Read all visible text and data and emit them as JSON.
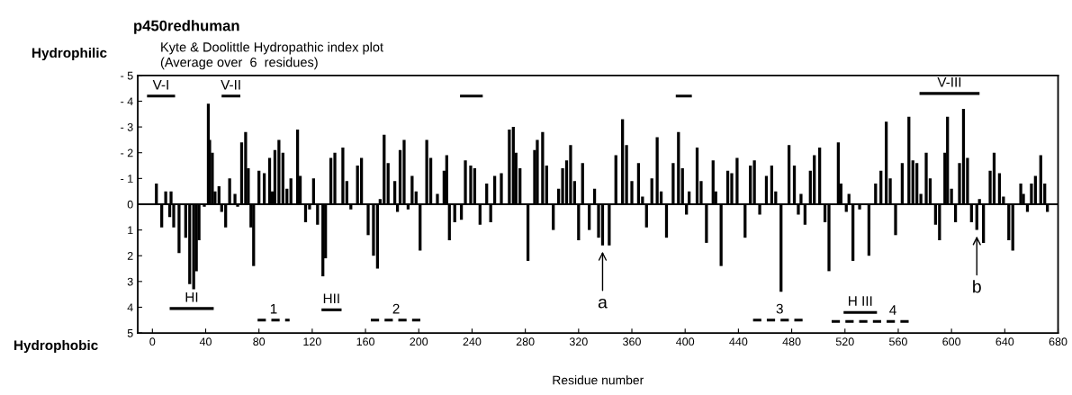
{
  "chart_data": {
    "type": "bar",
    "title": "p450redhuman",
    "subtitle": "Kyte & Doolittle Hydropathic index plot\n(Average over  6  residues)",
    "xlabel": "Residue number",
    "annotations": [
      "Hydrophilic",
      "Hydrophobic",
      {
        "text": "a",
        "x": 338,
        "y": 1.6
      },
      {
        "text": "b",
        "x": 619,
        "y": 1.0
      }
    ],
    "xlim": [
      -11,
      680
    ],
    "xticks": [
      0,
      40,
      80,
      120,
      160,
      200,
      240,
      280,
      320,
      360,
      400,
      440,
      480,
      520,
      560,
      600,
      640,
      680
    ],
    "ylim": [
      5,
      -5
    ],
    "yticks": [
      {
        "value": -5,
        "label": "- 5"
      },
      {
        "value": -4,
        "label": "- 4"
      },
      {
        "value": -3,
        "label": "- 3"
      },
      {
        "value": -2,
        "label": "- 2"
      },
      {
        "value": -1,
        "label": "- 1"
      },
      0,
      1,
      2,
      3,
      4,
      5
    ],
    "series": [
      {
        "color": "#000000",
        "x": [
          3,
          7,
          10,
          13,
          14,
          16,
          20,
          25,
          28,
          31,
          33,
          35,
          39,
          42,
          43,
          45,
          47,
          50,
          52,
          55,
          58,
          62,
          64,
          67,
          70,
          72,
          74,
          76,
          80,
          84,
          88,
          90,
          92,
          95,
          98,
          101,
          104,
          109,
          111,
          115,
          118,
          121,
          124,
          128,
          130,
          134,
          137,
          143,
          146,
          149,
          154,
          157,
          162,
          166,
          169,
          171,
          174,
          177,
          182,
          184,
          186,
          189,
          192,
          195,
          198,
          201,
          206,
          209,
          214,
          219,
          221,
          223,
          227,
          232,
          235,
          239,
          242,
          246,
          251,
          254,
          257,
          262,
          268,
          271,
          273,
          276,
          282,
          287,
          289,
          293,
          296,
          301,
          305,
          308,
          311,
          314,
          317,
          320,
          323,
          328,
          332,
          335,
          338,
          343,
          348,
          353,
          356,
          360,
          365,
          368,
          371,
          375,
          379,
          382,
          386,
          391,
          395,
          398,
          401,
          403,
          409,
          412,
          416,
          421,
          423,
          427,
          432,
          435,
          439,
          445,
          449,
          452,
          456,
          461,
          465,
          468,
          472,
          478,
          482,
          485,
          487,
          490,
          494,
          497,
          501,
          505,
          508,
          515,
          517,
          521,
          523,
          526,
          531,
          538,
          543,
          547,
          551,
          554,
          558,
          563,
          568,
          571,
          574,
          577,
          581,
          584,
          588,
          591,
          595,
          597,
          600,
          603,
          606,
          609,
          612,
          615,
          619,
          621,
          624,
          629,
          632,
          636,
          639,
          643,
          646,
          652,
          654,
          657,
          660,
          663,
          667,
          670,
          672
        ],
        "values": [
          -0.8,
          0.9,
          -0.5,
          0.5,
          -0.5,
          0.9,
          1.9,
          1.3,
          3.1,
          3.3,
          2.6,
          1.4,
          0.1,
          -3.9,
          -2.5,
          -2.0,
          -0.5,
          -0.7,
          0.3,
          0.9,
          -1.0,
          -0.4,
          0.1,
          -2.4,
          -2.8,
          -1.4,
          0.9,
          2.4,
          -1.3,
          -1.2,
          -1.8,
          -0.5,
          -2.1,
          -2.5,
          -2.0,
          -0.6,
          -1.0,
          -2.9,
          -1.1,
          0.7,
          0.2,
          -1.0,
          0.8,
          2.8,
          2.1,
          -1.8,
          -2.0,
          -2.2,
          -0.9,
          0.2,
          -1.5,
          -1.8,
          1.2,
          2.0,
          2.5,
          -0.2,
          -2.7,
          -1.6,
          -0.9,
          0.3,
          -2.1,
          -2.5,
          0.2,
          -1.1,
          -0.5,
          1.8,
          -2.5,
          -1.8,
          -0.4,
          -1.3,
          -1.9,
          1.4,
          0.7,
          0.6,
          -1.7,
          -1.5,
          -1.4,
          0.8,
          -0.8,
          0.7,
          -1.1,
          -1.2,
          -2.9,
          -3.0,
          -2.0,
          -1.4,
          2.2,
          -2.1,
          -2.5,
          -2.8,
          -1.5,
          1.0,
          -0.6,
          -1.4,
          -1.7,
          -2.3,
          -0.9,
          1.4,
          -1.6,
          1.0,
          -0.6,
          1.3,
          1.6,
          1.6,
          -1.9,
          -3.3,
          -2.3,
          -0.9,
          -1.6,
          -0.3,
          0.9,
          -1.0,
          -2.6,
          -0.5,
          1.3,
          -1.6,
          -2.8,
          -1.4,
          0.4,
          -0.5,
          -2.2,
          -0.9,
          1.5,
          -1.7,
          -0.5,
          2.4,
          -1.3,
          -1.2,
          -1.8,
          1.3,
          -1.5,
          -1.7,
          0.4,
          -1.1,
          -1.5,
          -0.5,
          3.4,
          -2.3,
          -1.5,
          0.4,
          -0.4,
          0.8,
          -1.3,
          -1.9,
          -2.2,
          0.7,
          2.6,
          -2.4,
          -0.8,
          0.3,
          -0.4,
          2.2,
          0.2,
          2.0,
          -0.8,
          -1.3,
          -3.2,
          -1.0,
          1.2,
          -1.6,
          -3.4,
          -1.7,
          -1.6,
          -0.4,
          -2.0,
          -1.0,
          0.8,
          1.4,
          -2.0,
          -3.4,
          -0.6,
          0.7,
          -1.6,
          -3.7,
          -1.8,
          0.7,
          1.0,
          -0.2,
          1.5,
          -1.3,
          -2.0,
          -1.2,
          -0.3,
          1.4,
          1.8,
          -0.8,
          -0.4,
          0.3,
          -0.8,
          -1.1,
          -1.9,
          -0.8,
          0.3
        ]
      },
      {
        "type": "line",
        "name": "V-I",
        "color": "#000000",
        "line_style": "solid",
        "x": [
          -3,
          16
        ],
        "values": [
          -4.2,
          -4.2
        ]
      },
      {
        "type": "line",
        "name": "V-II",
        "color": "#000000",
        "line_style": "solid",
        "x": [
          53,
          65
        ],
        "values": [
          -4.2,
          -4.2
        ]
      },
      {
        "type": "line",
        "color": "#000000",
        "line_style": "solid",
        "x": [
          232,
          247
        ],
        "values": [
          -4.2,
          -4.2
        ]
      },
      {
        "type": "line",
        "color": "#000000",
        "line_style": "solid",
        "x": [
          394,
          404
        ],
        "values": [
          -4.2,
          -4.2
        ]
      },
      {
        "type": "line",
        "name": "V-III",
        "color": "#000000",
        "line_style": "solid",
        "x": [
          577,
          620
        ],
        "values": [
          -4.3,
          -4.3
        ]
      },
      {
        "type": "line",
        "name": "HI",
        "color": "#000000",
        "line_style": "solid",
        "x": [
          14,
          45
        ],
        "values": [
          4.05,
          4.05
        ]
      },
      {
        "type": "line",
        "name": "1",
        "color": "#000000",
        "line_style": "dashed",
        "x": [
          79,
          103
        ],
        "values": [
          4.5,
          4.5
        ]
      },
      {
        "type": "line",
        "name": "HII",
        "color": "#000000",
        "line_style": "solid",
        "x": [
          128,
          141
        ],
        "values": [
          4.1,
          4.1
        ]
      },
      {
        "type": "line",
        "name": "2",
        "color": "#000000",
        "line_style": "dashed",
        "x": [
          164,
          202
        ],
        "values": [
          4.5,
          4.5
        ]
      },
      {
        "type": "line",
        "name": "3",
        "color": "#000000",
        "line_style": "dashed",
        "x": [
          451,
          491
        ],
        "values": [
          4.5,
          4.5
        ]
      },
      {
        "type": "line",
        "name": "H III",
        "color": "#000000",
        "line_style": "solid",
        "x": [
          520,
          543
        ],
        "values": [
          4.2,
          4.2
        ]
      },
      {
        "type": "line",
        "name": "4",
        "color": "#000000",
        "line_style": "dashed",
        "x": [
          510,
          569
        ],
        "values": [
          4.55,
          4.55
        ]
      }
    ]
  }
}
